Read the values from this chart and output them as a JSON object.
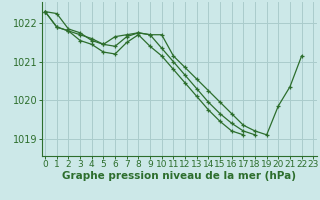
{
  "bg_color": "#cce8e8",
  "grid_color": "#aacccc",
  "line_color": "#2d6e2d",
  "marker_color": "#2d6e2d",
  "xlabel": "Graphe pression niveau de la mer (hPa)",
  "xlabel_fontsize": 7.5,
  "tick_label_fontsize": 6.5,
  "ytick_fontsize": 7,
  "ylim": [
    1018.55,
    1022.55
  ],
  "xlim": [
    -0.3,
    23.3
  ],
  "yticks": [
    1019,
    1020,
    1021,
    1022
  ],
  "xticks": [
    0,
    1,
    2,
    3,
    4,
    5,
    6,
    7,
    8,
    9,
    10,
    11,
    12,
    13,
    14,
    15,
    16,
    17,
    18,
    19,
    20,
    21,
    22,
    23
  ],
  "series": [
    [
      1022.3,
      1022.25,
      1021.85,
      1021.75,
      1021.55,
      1021.45,
      1021.4,
      1021.65,
      1021.75,
      1021.7,
      1021.7,
      1021.15,
      1020.85,
      1020.55,
      1020.25,
      1019.95,
      1019.65,
      1019.35,
      1019.2,
      1019.1,
      1019.85,
      1020.35,
      1021.15,
      null
    ],
    [
      1022.3,
      1021.9,
      1021.8,
      1021.7,
      1021.6,
      1021.45,
      1021.65,
      1021.7,
      1021.75,
      1021.7,
      1021.35,
      1021.0,
      1020.65,
      1020.3,
      1019.95,
      1019.65,
      1019.4,
      1019.2,
      1019.1,
      null,
      null,
      null,
      null,
      null
    ],
    [
      1022.3,
      1021.9,
      1021.8,
      1021.55,
      1021.45,
      1021.25,
      1021.2,
      1021.5,
      1021.7,
      1021.4,
      1021.15,
      1020.8,
      1020.45,
      1020.1,
      1019.75,
      1019.45,
      1019.2,
      1019.1,
      null,
      null,
      null,
      null,
      null,
      null
    ]
  ]
}
